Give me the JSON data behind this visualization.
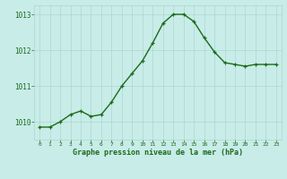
{
  "x": [
    0,
    1,
    2,
    3,
    4,
    5,
    6,
    7,
    8,
    9,
    10,
    11,
    12,
    13,
    14,
    15,
    16,
    17,
    18,
    19,
    20,
    21,
    22,
    23
  ],
  "y": [
    1009.85,
    1009.85,
    1010.0,
    1010.2,
    1010.3,
    1010.15,
    1010.2,
    1010.55,
    1011.0,
    1011.35,
    1011.7,
    1012.2,
    1012.75,
    1013.0,
    1013.0,
    1012.8,
    1012.35,
    1011.95,
    1011.65,
    1011.6,
    1011.55,
    1011.6,
    1011.6,
    1011.6
  ],
  "line_color": "#1a6b1a",
  "marker_color": "#1a6b1a",
  "bg_color": "#c8ece8",
  "grid_color": "#b0d4ce",
  "xlabel": "Graphe pression niveau de la mer (hPa)",
  "xlabel_color": "#1a6b1a",
  "tick_color": "#1a6b1a",
  "ylim": [
    1009.5,
    1013.25
  ],
  "xlim": [
    -0.5,
    23.5
  ],
  "yticks": [
    1010,
    1011,
    1012,
    1013
  ],
  "xticks": [
    0,
    1,
    2,
    3,
    4,
    5,
    6,
    7,
    8,
    9,
    10,
    11,
    12,
    13,
    14,
    15,
    16,
    17,
    18,
    19,
    20,
    21,
    22,
    23
  ],
  "linewidth": 1.0,
  "markersize": 3.0
}
